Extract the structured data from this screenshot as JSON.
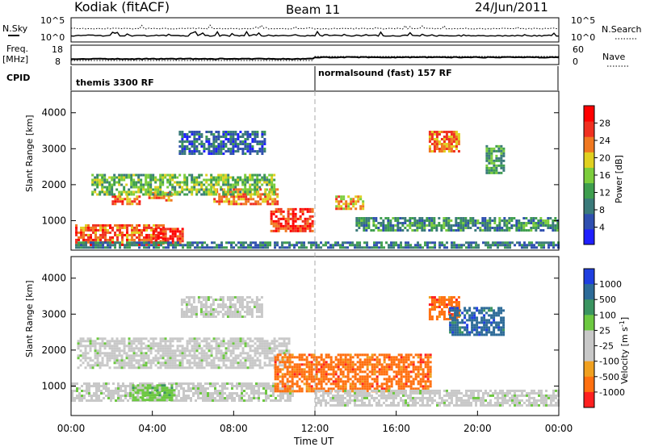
{
  "header": {
    "station": "Kodiak (fitACF)",
    "beam": "Beam 11",
    "date": "24/Jun/2011"
  },
  "panels": {
    "nsky_label": "N.Sky",
    "nsearch_label": "N.Search",
    "freq_label": "Freq.",
    "freq_unit": "[MHz]",
    "nave_label": "Nave",
    "cpid_label": "CPID",
    "nsky_ticks": [
      "10^5",
      "10^0"
    ],
    "nsearch_ticks": [
      "10^5",
      "10^0"
    ],
    "freq_ticks": [
      "18",
      "8"
    ],
    "nave_ticks": [
      "60",
      "0"
    ]
  },
  "cpid": {
    "segments": [
      {
        "label": "themis 3300 RF",
        "start_hour": 0
      },
      {
        "label": "normalsound (fast) 157 RF",
        "start_hour": 12
      }
    ]
  },
  "colors": {
    "power": [
      "#1f1fff",
      "#2f4fb0",
      "#3a7a7a",
      "#3e9e4e",
      "#7ccd3c",
      "#e0d020",
      "#f07820",
      "#f03020",
      "#ff0000"
    ],
    "velocity": [
      "#1f3fe0",
      "#2d6b98",
      "#3a9460",
      "#6cc840",
      "#c8c8c8",
      "#c8c8c8",
      "#f0a020",
      "#ff7010",
      "#ff2020"
    ]
  },
  "chart_data": [
    {
      "type": "heatmap",
      "title": "",
      "ylabel": "Slant Range [km]",
      "ylim": [
        180,
        4600
      ],
      "yticks": [
        "1000",
        "2000",
        "3000",
        "4000"
      ],
      "colorbar_label": "Power [dB]",
      "colorbar_ticks": [
        "4",
        "8",
        "12",
        "16",
        "20",
        "24",
        "28"
      ],
      "colorbar_range": [
        0,
        32
      ],
      "regions": [
        {
          "t0": 0.2,
          "t1": 4.6,
          "r0": 300,
          "r1": 900,
          "value": 26
        },
        {
          "t0": 4.0,
          "t1": 5.6,
          "r0": 350,
          "r1": 800,
          "value": 28
        },
        {
          "t0": 2.0,
          "t1": 3.4,
          "r0": 1400,
          "r1": 1700,
          "value": 26
        },
        {
          "t0": 3.8,
          "t1": 5.0,
          "r0": 1500,
          "r1": 1800,
          "value": 24
        },
        {
          "t0": 7.0,
          "t1": 10.2,
          "r0": 1450,
          "r1": 1900,
          "value": 24
        },
        {
          "t0": 9.8,
          "t1": 11.9,
          "r0": 700,
          "r1": 1350,
          "value": 28
        },
        {
          "t0": 13.0,
          "t1": 14.4,
          "r0": 1300,
          "r1": 1700,
          "value": 22
        },
        {
          "t0": 1.0,
          "t1": 10.0,
          "r0": 1700,
          "r1": 2300,
          "value": 14
        },
        {
          "t0": 0.2,
          "t1": 24.0,
          "r0": 220,
          "r1": 420,
          "value": 8
        },
        {
          "t0": 14.0,
          "t1": 24.0,
          "r0": 700,
          "r1": 1100,
          "value": 10
        },
        {
          "t0": 5.3,
          "t1": 9.6,
          "r0": 2800,
          "r1": 3500,
          "value": 6
        },
        {
          "t0": 17.6,
          "t1": 19.2,
          "r0": 2900,
          "r1": 3500,
          "value": 24
        },
        {
          "t0": 20.4,
          "t1": 21.4,
          "r0": 2300,
          "r1": 3100,
          "value": 12
        }
      ]
    },
    {
      "type": "heatmap",
      "title": "",
      "ylabel": "Slant Range [km]",
      "ylim": [
        180,
        4600
      ],
      "yticks": [
        "1000",
        "2000",
        "3000",
        "4000"
      ],
      "colorbar_label": "Velocity [m s^-1]",
      "colorbar_ticks": [
        "1000",
        "500",
        "100",
        "25",
        "-25",
        "-100",
        "-500",
        "-1000"
      ],
      "regions": [
        {
          "t0": 0.3,
          "t1": 10.8,
          "r0": 1450,
          "r1": 2350,
          "value": 0
        },
        {
          "t0": 0.0,
          "t1": 11.0,
          "r0": 550,
          "r1": 1100,
          "value": 0
        },
        {
          "t0": 3.0,
          "t1": 5.2,
          "r0": 600,
          "r1": 1050,
          "value": 300
        },
        {
          "t0": 10.0,
          "t1": 17.8,
          "r0": 800,
          "r1": 1900,
          "value": -200
        },
        {
          "t0": 12.0,
          "t1": 24.0,
          "r0": 450,
          "r1": 900,
          "value": 0
        },
        {
          "t0": 17.6,
          "t1": 19.2,
          "r0": 2800,
          "r1": 3500,
          "value": -300
        },
        {
          "t0": 18.6,
          "t1": 21.4,
          "r0": 2400,
          "r1": 3200,
          "value": 600
        },
        {
          "t0": 5.4,
          "t1": 9.4,
          "r0": 2900,
          "r1": 3500,
          "value": 0
        }
      ]
    }
  ],
  "time_axis": {
    "label": "Time UT",
    "ticks": [
      "00:00",
      "04:00",
      "08:00",
      "12:00",
      "16:00",
      "20:00",
      "00:00"
    ]
  }
}
